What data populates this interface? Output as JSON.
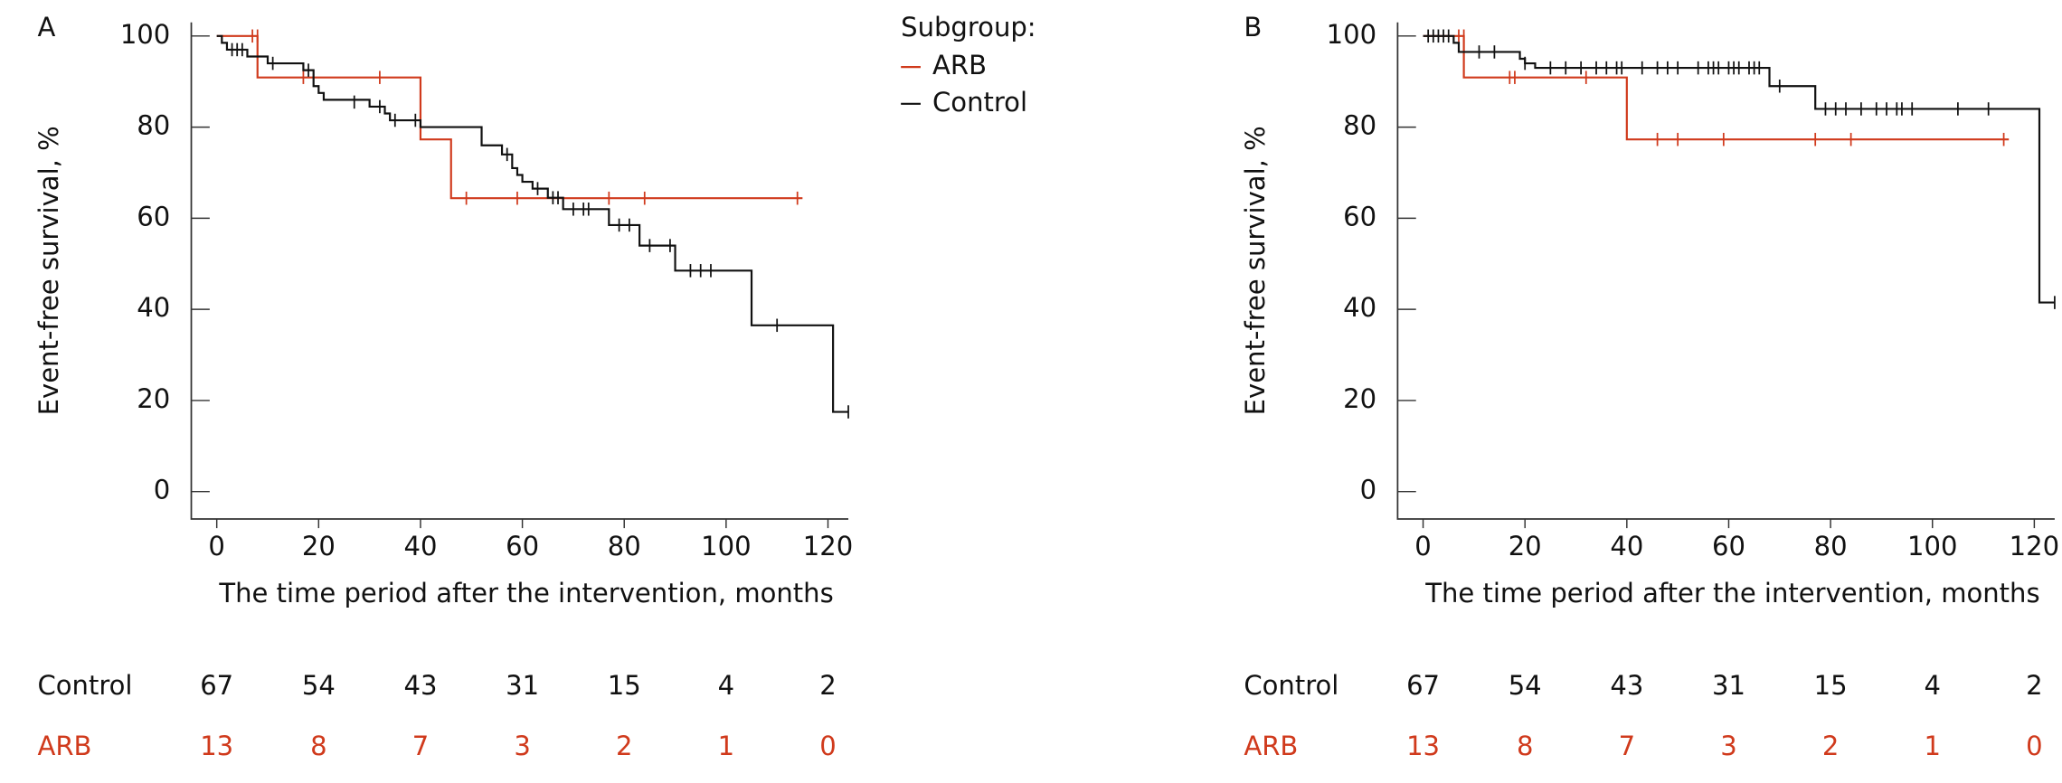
{
  "chart_data": [
    {
      "type": "step",
      "label": "A",
      "y_label": "Event-free survival, %",
      "x_label": "The time period after the intervention, months",
      "xlim": [
        -5,
        124
      ],
      "ylim": [
        -6,
        103
      ],
      "xticks": [
        0,
        20,
        40,
        60,
        80,
        100,
        120
      ],
      "yticks": [
        0,
        20,
        40,
        60,
        80,
        100
      ],
      "legend_title": "Subgroup:",
      "series": [
        {
          "name": "ARB",
          "color": "#d03a1c",
          "x": [
            0,
            8,
            40,
            46,
            115
          ],
          "values": [
            100,
            90.9,
            77.3,
            64.4,
            64.4
          ],
          "censor_x": [
            7,
            8,
            17,
            32,
            49,
            59,
            77,
            84,
            114
          ],
          "censor_values": [
            100,
            100,
            90.9,
            90.9,
            64.4,
            64.4,
            64.4,
            64.4,
            64.4
          ]
        },
        {
          "name": "Control",
          "color": "#111111",
          "x": [
            0,
            1,
            2,
            6,
            10,
            17,
            19,
            20,
            21,
            30,
            33,
            34,
            40,
            52,
            56,
            58,
            59,
            60,
            62,
            65,
            68,
            77,
            83,
            90,
            105,
            121,
            124
          ],
          "values": [
            100,
            98.5,
            97,
            95.5,
            94,
            92.5,
            89,
            87.5,
            86,
            84.5,
            83,
            81.5,
            80,
            76,
            74,
            71,
            69.5,
            68,
            66.5,
            64.5,
            62,
            58.5,
            54,
            48.5,
            36.5,
            17.5,
            17.5
          ],
          "censor_x": [
            3,
            4,
            5,
            11,
            18,
            27,
            32,
            35,
            39,
            57,
            63,
            66,
            67,
            70,
            72,
            73,
            79,
            81,
            85,
            89,
            93,
            95,
            97,
            110,
            124
          ],
          "censor_values": [
            97,
            97,
            97,
            94,
            92.5,
            85.5,
            84.5,
            81.5,
            81.5,
            74,
            66.5,
            64.5,
            64.5,
            62,
            62,
            62,
            58.5,
            58.5,
            54,
            54,
            48.5,
            48.5,
            48.5,
            36.5,
            17.5
          ]
        }
      ],
      "risk_table": [
        {
          "name": "Control",
          "color": "#111111",
          "values": [
            67,
            54,
            43,
            31,
            15,
            4,
            2
          ]
        },
        {
          "name": "ARB",
          "color": "#d03a1c",
          "values": [
            13,
            8,
            7,
            3,
            2,
            1,
            0
          ]
        }
      ]
    },
    {
      "type": "step",
      "label": "B",
      "y_label": "Event-free survival, %",
      "x_label": "The time period after the intervention, months",
      "xlim": [
        -5,
        124
      ],
      "ylim": [
        -6,
        103
      ],
      "xticks": [
        0,
        20,
        40,
        60,
        80,
        100,
        120
      ],
      "yticks": [
        0,
        20,
        40,
        60,
        80,
        100
      ],
      "series": [
        {
          "name": "ARB",
          "color": "#d03a1c",
          "x": [
            0,
            8,
            40,
            115
          ],
          "values": [
            100,
            90.9,
            77.3,
            77.3
          ],
          "censor_x": [
            7,
            8,
            17,
            18,
            32,
            46,
            50,
            59,
            77,
            84,
            114
          ],
          "censor_values": [
            100,
            100,
            90.9,
            90.9,
            90.9,
            77.3,
            77.3,
            77.3,
            77.3,
            77.3,
            77.3
          ]
        },
        {
          "name": "Control",
          "color": "#111111",
          "x": [
            0,
            6,
            7,
            19,
            20,
            22,
            68,
            77,
            121,
            124
          ],
          "values": [
            100,
            98.5,
            96.5,
            95,
            94,
            93,
            89,
            84,
            41.5,
            41.5
          ],
          "censor_x": [
            1,
            2,
            3,
            4,
            5,
            11,
            14,
            20,
            25,
            28,
            31,
            34,
            36,
            38,
            39,
            43,
            46,
            48,
            50,
            54,
            56,
            57,
            58,
            60,
            61,
            62,
            64,
            65,
            66,
            70,
            79,
            81,
            83,
            86,
            89,
            91,
            93,
            94,
            96,
            105,
            111,
            124
          ],
          "censor_values": [
            100,
            100,
            100,
            100,
            100,
            96.5,
            96.5,
            94,
            93,
            93,
            93,
            93,
            93,
            93,
            93,
            93,
            93,
            93,
            93,
            93,
            93,
            93,
            93,
            93,
            93,
            93,
            93,
            93,
            93,
            89,
            84,
            84,
            84,
            84,
            84,
            84,
            84,
            84,
            84,
            84,
            84,
            41.5
          ]
        }
      ],
      "risk_table": [
        {
          "name": "Control",
          "color": "#111111",
          "values": [
            67,
            54,
            43,
            31,
            15,
            4,
            2
          ]
        },
        {
          "name": "ARB",
          "color": "#d03a1c",
          "values": [
            13,
            8,
            7,
            3,
            2,
            1,
            0
          ]
        }
      ]
    }
  ]
}
